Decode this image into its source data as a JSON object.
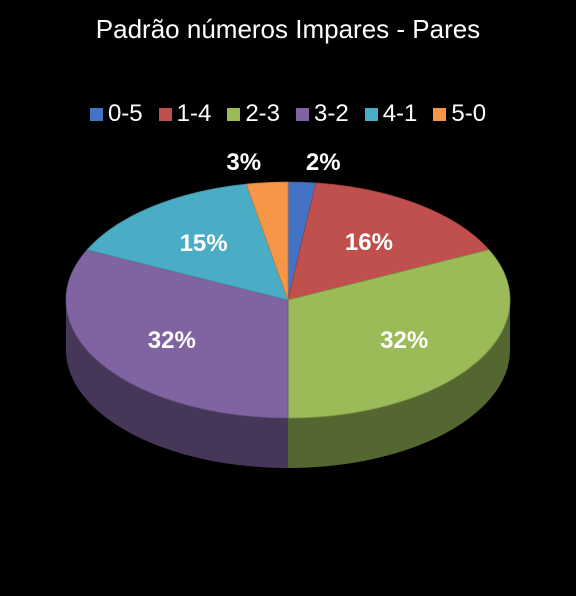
{
  "chart_data": {
    "type": "pie",
    "title": "Padrão números Impares - Pares",
    "legend_position": "top",
    "categories": [
      "0-5",
      "1-4",
      "2-3",
      "3-2",
      "4-1",
      "5-0"
    ],
    "values": [
      2,
      16,
      32,
      32,
      15,
      3
    ],
    "labels": [
      "2%",
      "16%",
      "32%",
      "32%",
      "15%",
      "3%"
    ],
    "colors": [
      "#4472C4",
      "#C0504D",
      "#9BBB59",
      "#8064A2",
      "#4BACC6",
      "#F79646"
    ]
  }
}
